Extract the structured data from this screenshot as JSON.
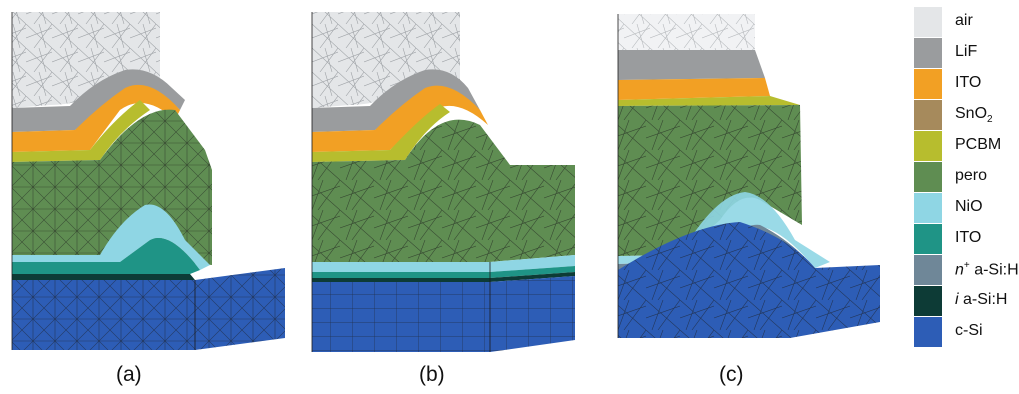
{
  "panels": [
    {
      "label": "(a)"
    },
    {
      "label": "(b)"
    },
    {
      "label": "(c)"
    }
  ],
  "legend": [
    {
      "text": "air",
      "color": "#e4e6e8"
    },
    {
      "text": "LiF",
      "color": "#9a9c9e"
    },
    {
      "text": "ITO",
      "color": "#f2a024"
    },
    {
      "text": "SnO",
      "sub": "2",
      "color": "#a68a5c"
    },
    {
      "text": "PCBM",
      "color": "#b7bd2e"
    },
    {
      "text": "pero",
      "color": "#5f8d52"
    },
    {
      "text": "NiO",
      "color": "#8fd6e4"
    },
    {
      "text": "ITO",
      "color": "#1f9486"
    },
    {
      "sup_prefix": "n",
      "sup": "+",
      "text": " a-Si:H",
      "color": "#6f8798"
    },
    {
      "italic_prefix": "i",
      "text": " a-Si:H",
      "color": "#0d3b36"
    },
    {
      "text": "c-Si",
      "color": "#2d5db6"
    }
  ],
  "colors": {
    "air": "#e4e6e8",
    "lif": "#9a9c9e",
    "ito": "#f2a024",
    "sno2": "#a68a5c",
    "pcbm": "#b7bd2e",
    "pero": "#5f8d52",
    "nio": "#8fd6e4",
    "ito_bottom": "#1f9486",
    "n_asi": "#6f8798",
    "i_asi": "#0d3b36",
    "csi": "#2d5db6",
    "mesh": "#1b1b1b"
  }
}
